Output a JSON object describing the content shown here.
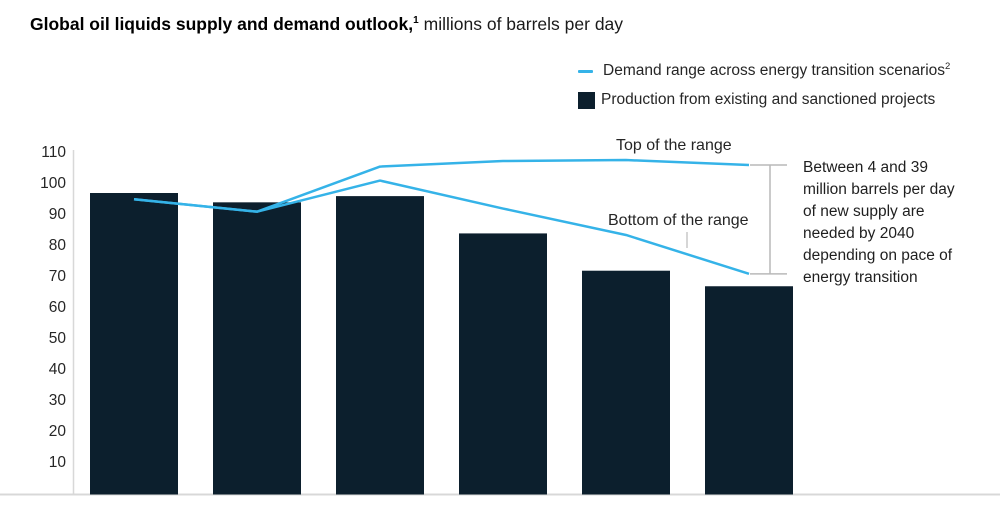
{
  "title": {
    "bold": "Global oil liquids supply and demand outlook,",
    "footnote_marker": "1",
    "regular": "millions of barrels per day"
  },
  "legend": {
    "items": [
      {
        "label": "Demand range across energy transition scenarios",
        "footnote_marker": "2",
        "swatch": "line",
        "color": "#35b3e8"
      },
      {
        "label": "Production from existing and sanctioned projects",
        "swatch": "square",
        "color": "#0c1f2d"
      }
    ]
  },
  "annotations": {
    "top_range_label": "Top of the range",
    "bottom_range_label": "Bottom of the range",
    "callout_lines": [
      "Between 4 and 39",
      "million barrels per day",
      "of new supply are",
      "needed by 2040",
      "depending on pace of",
      "energy transition"
    ]
  },
  "chart_data": {
    "type": "bar+line",
    "title": "Global oil liquids supply and demand outlook, millions of barrels per day",
    "series": [
      {
        "name": "Production from existing and sanctioned projects",
        "type": "bar",
        "color": "#0c1f2d",
        "values": [
          97,
          94,
          96,
          84,
          72,
          67
        ]
      },
      {
        "name": "Demand range across energy transition scenarios (top of the range)",
        "type": "line",
        "color": "#35b3e8",
        "values": [
          95,
          91,
          105.5,
          107.3,
          107.6,
          106
        ]
      },
      {
        "name": "Demand range across energy transition scenarios (bottom of the range)",
        "type": "line",
        "color": "#35b3e8",
        "values": [
          95,
          91,
          101,
          92,
          83.5,
          71
        ]
      }
    ],
    "yticks": [
      10,
      20,
      30,
      40,
      50,
      60,
      70,
      80,
      90,
      100,
      110
    ],
    "ylim": [
      0,
      115
    ],
    "x_tick_labels_shown": false,
    "grid": false,
    "legend_position": "top-right",
    "gap_at_2040": {
      "bottom_minus_bar": 4,
      "top_minus_bar": 39
    }
  }
}
